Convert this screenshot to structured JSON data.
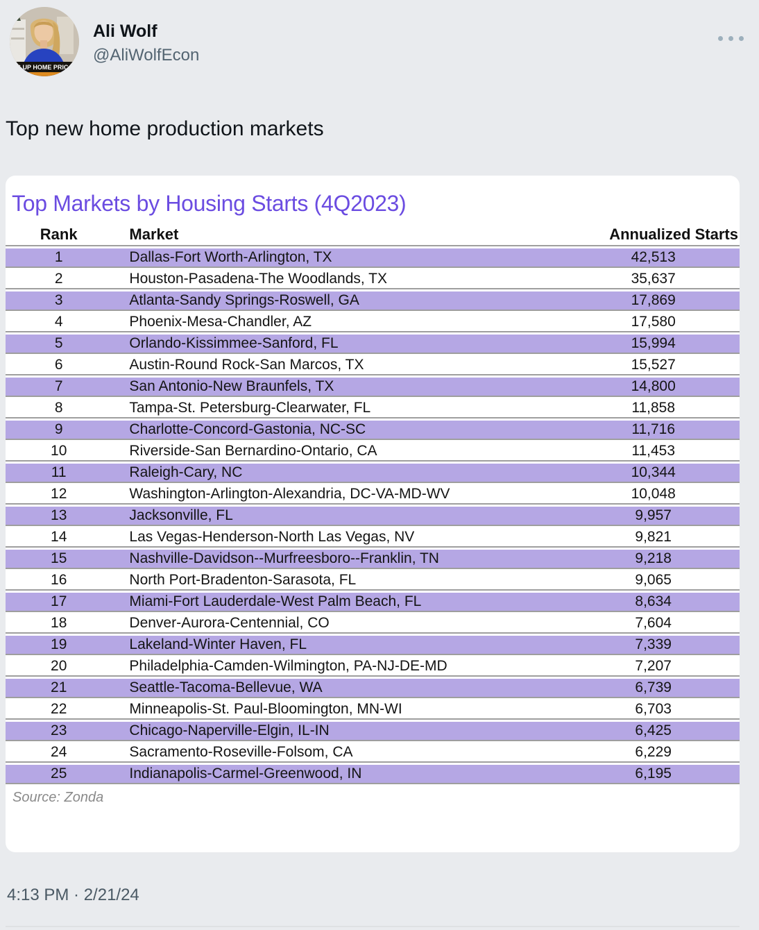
{
  "colors": {
    "page_bg": "#e9ebee",
    "card_bg": "#ffffff",
    "title_purple": "#6b4ce1",
    "row_purple": "#b5a7e4",
    "separator_gray": "#9e9e9e",
    "text_dark": "#0f1419",
    "text_gray": "#536471",
    "source_gray": "#8a8a8a",
    "timestamp_gray": "#4a5964",
    "divider_gray": "#dfe1e3",
    "dots_gray": "#9db0bc"
  },
  "tweet": {
    "author": {
      "name": "Ali Wolf",
      "handle": "@AliWolfEcon",
      "avatar_chyron": "ES UP HOME PRIC"
    },
    "text": "Top new home production markets",
    "timestamp": "4:13 PM · 2/21/24"
  },
  "chart_data": {
    "type": "table",
    "title": "Top Markets by Housing Starts (4Q2023)",
    "source": "Source: Zonda",
    "columns": [
      "Rank",
      "Market",
      "Annualized Starts"
    ],
    "rows": [
      [
        "1",
        "Dallas-Fort Worth-Arlington, TX",
        "42,513"
      ],
      [
        "2",
        "Houston-Pasadena-The Woodlands, TX",
        "35,637"
      ],
      [
        "3",
        "Atlanta-Sandy Springs-Roswell, GA",
        "17,869"
      ],
      [
        "4",
        "Phoenix-Mesa-Chandler, AZ",
        "17,580"
      ],
      [
        "5",
        "Orlando-Kissimmee-Sanford, FL",
        "15,994"
      ],
      [
        "6",
        "Austin-Round Rock-San Marcos, TX",
        "15,527"
      ],
      [
        "7",
        "San Antonio-New Braunfels, TX",
        "14,800"
      ],
      [
        "8",
        "Tampa-St. Petersburg-Clearwater, FL",
        "11,858"
      ],
      [
        "9",
        "Charlotte-Concord-Gastonia, NC-SC",
        "11,716"
      ],
      [
        "10",
        "Riverside-San Bernardino-Ontario, CA",
        "11,453"
      ],
      [
        "11",
        "Raleigh-Cary, NC",
        "10,344"
      ],
      [
        "12",
        "Washington-Arlington-Alexandria, DC-VA-MD-WV",
        "10,048"
      ],
      [
        "13",
        "Jacksonville, FL",
        "9,957"
      ],
      [
        "14",
        "Las Vegas-Henderson-North Las Vegas, NV",
        "9,821"
      ],
      [
        "15",
        "Nashville-Davidson--Murfreesboro--Franklin, TN",
        "9,218"
      ],
      [
        "16",
        "North Port-Bradenton-Sarasota, FL",
        "9,065"
      ],
      [
        "17",
        "Miami-Fort Lauderdale-West Palm Beach, FL",
        "8,634"
      ],
      [
        "18",
        "Denver-Aurora-Centennial, CO",
        "7,604"
      ],
      [
        "19",
        "Lakeland-Winter Haven, FL",
        "7,339"
      ],
      [
        "20",
        "Philadelphia-Camden-Wilmington, PA-NJ-DE-MD",
        "7,207"
      ],
      [
        "21",
        "Seattle-Tacoma-Bellevue, WA",
        "6,739"
      ],
      [
        "22",
        "Minneapolis-St. Paul-Bloomington, MN-WI",
        "6,703"
      ],
      [
        "23",
        "Chicago-Naperville-Elgin, IL-IN",
        "6,425"
      ],
      [
        "24",
        "Sacramento-Roseville-Folsom, CA",
        "6,229"
      ],
      [
        "25",
        "Indianapolis-Carmel-Greenwood, IN",
        "6,195"
      ]
    ]
  }
}
